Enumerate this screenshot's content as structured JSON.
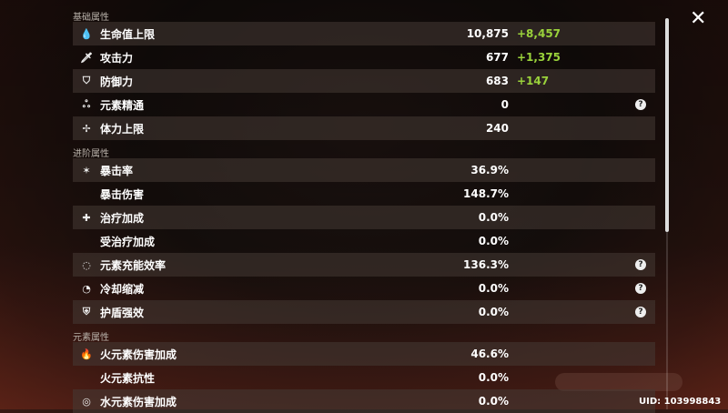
{
  "groups": {
    "base": "基础属性",
    "advanced": "进阶属性",
    "element": "元素属性"
  },
  "base": [
    {
      "icon": "hp-drop-icon",
      "glyph": "💧",
      "label": "生命值上限",
      "value": "10,875",
      "bonus": "+8,457"
    },
    {
      "icon": "sword-icon",
      "glyph": "🗡",
      "label": "攻击力",
      "value": "677",
      "bonus": "+1,375"
    },
    {
      "icon": "shield-icon",
      "glyph": "⛉",
      "label": "防御力",
      "value": "683",
      "bonus": "+147"
    },
    {
      "icon": "elemental-mastery-icon",
      "glyph": "ஃ",
      "label": "元素精通",
      "value": "0",
      "help": true
    },
    {
      "icon": "stamina-icon",
      "glyph": "✢",
      "label": "体力上限",
      "value": "240"
    }
  ],
  "advanced": [
    {
      "icon": "crit-icon",
      "glyph": "✶",
      "label": "暴击率",
      "value": "36.9%"
    },
    {
      "label": "暴击伤害",
      "value": "148.7%"
    },
    {
      "icon": "healing-cross-icon",
      "glyph": "✚",
      "label": "治疗加成",
      "value": "0.0%"
    },
    {
      "label": "受治疗加成",
      "value": "0.0%"
    },
    {
      "icon": "energy-recharge-icon",
      "glyph": "◌",
      "label": "元素充能效率",
      "value": "136.3%",
      "help": true
    },
    {
      "icon": "cooldown-icon",
      "glyph": "◔",
      "label": "冷却缩减",
      "value": "0.0%",
      "help": true
    },
    {
      "icon": "shield-strength-icon",
      "glyph": "⛨",
      "label": "护盾强效",
      "value": "0.0%",
      "help": true
    }
  ],
  "element": [
    {
      "icon": "pyro-icon",
      "glyph": "🔥",
      "label": "火元素伤害加成",
      "value": "46.6%"
    },
    {
      "label": "火元素抗性",
      "value": "0.0%"
    },
    {
      "icon": "hydro-icon",
      "glyph": "◎",
      "label": "水元素伤害加成",
      "value": "0.0%"
    }
  ],
  "help_glyph": "?",
  "close_glyph": "✕",
  "uid": "UID: 103998843"
}
